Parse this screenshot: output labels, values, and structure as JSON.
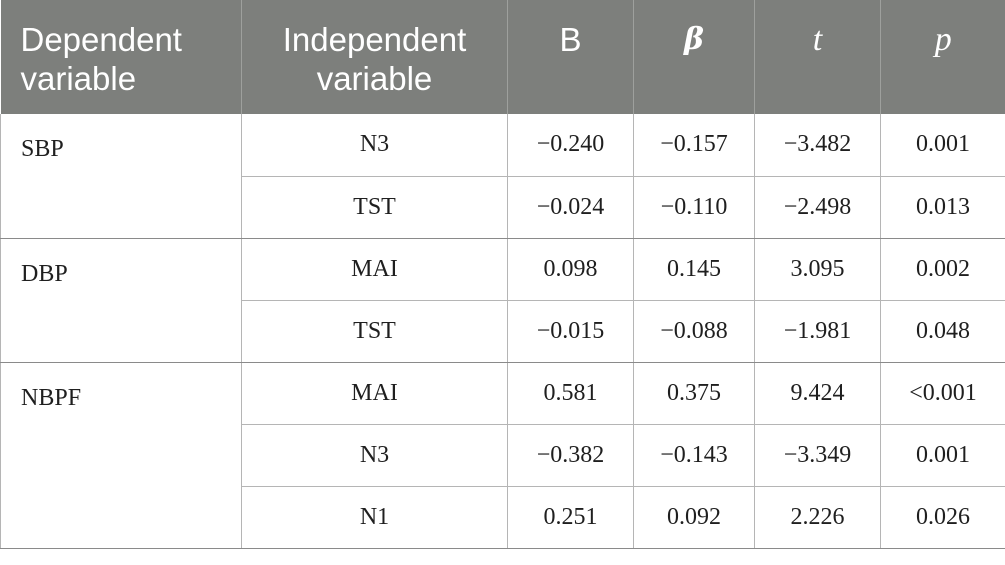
{
  "table": {
    "headers": [
      "Dependent variable",
      "Independent variable",
      "B",
      "β",
      "t",
      "p"
    ],
    "groups": [
      {
        "dependent": "SBP",
        "rows": [
          {
            "independent": "N3",
            "B": "−0.240",
            "beta": "−0.157",
            "t": "−3.482",
            "p": "0.001"
          },
          {
            "independent": "TST",
            "B": "−0.024",
            "beta": "−0.110",
            "t": "−2.498",
            "p": "0.013"
          }
        ]
      },
      {
        "dependent": "DBP",
        "rows": [
          {
            "independent": "MAI",
            "B": "0.098",
            "beta": "0.145",
            "t": "3.095",
            "p": "0.002"
          },
          {
            "independent": "TST",
            "B": "−0.015",
            "beta": "−0.088",
            "t": "−1.981",
            "p": "0.048"
          }
        ]
      },
      {
        "dependent": "NBPF",
        "rows": [
          {
            "independent": "MAI",
            "B": "0.581",
            "beta": "0.375",
            "t": "9.424",
            "p": "<0.001"
          },
          {
            "independent": "N3",
            "B": "−0.382",
            "beta": "−0.143",
            "t": "−3.349",
            "p": "0.001"
          },
          {
            "independent": "N1",
            "B": "0.251",
            "beta": "0.092",
            "t": "2.226",
            "p": "0.026"
          }
        ]
      }
    ]
  }
}
